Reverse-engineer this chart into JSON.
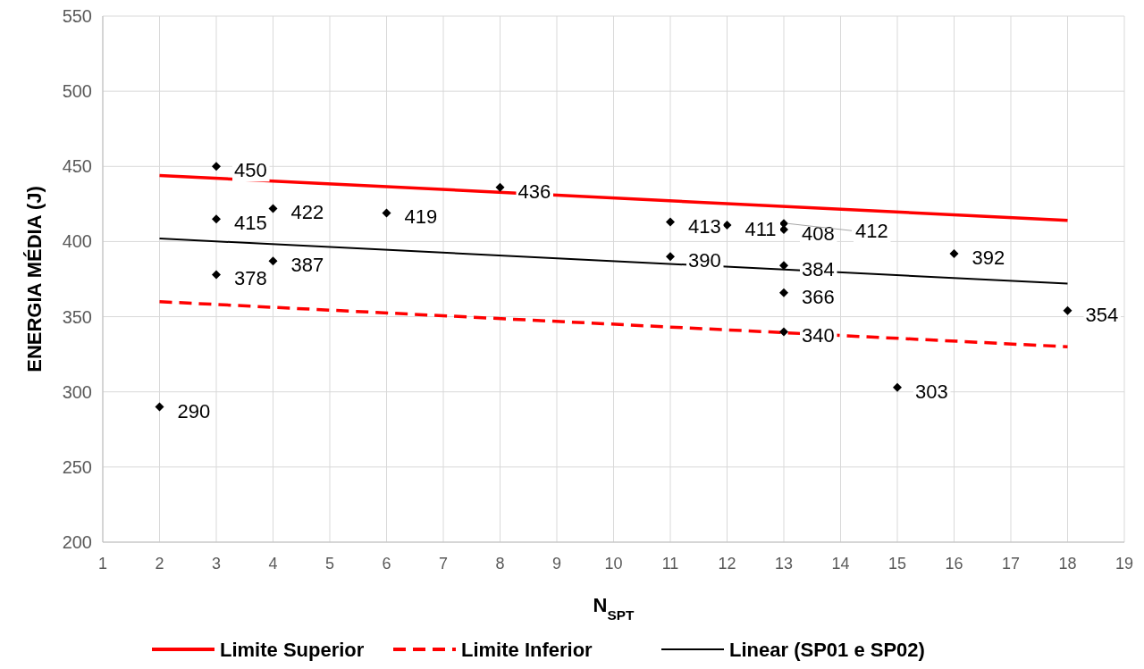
{
  "chart_data": {
    "type": "scatter",
    "xlabel": "N$_{SPT}$",
    "ylabel": "ENERGIA MÉDIA  (J)",
    "xlim": [
      1,
      19
    ],
    "xticks": [
      1,
      2,
      3,
      4,
      5,
      6,
      7,
      8,
      9,
      10,
      11,
      12,
      13,
      14,
      15,
      16,
      17,
      18,
      19
    ],
    "ylim": [
      200,
      550
    ],
    "yticks": [
      200,
      250,
      300,
      350,
      400,
      450,
      500,
      550
    ],
    "grid": true,
    "legend": "bottom",
    "series": [
      {
        "color": "#000000",
        "marker": "diamond",
        "x": [
          2,
          3,
          3,
          3,
          4,
          4,
          6,
          8,
          11,
          11,
          12,
          13,
          13,
          13,
          13,
          13,
          15,
          16,
          18
        ],
        "values": [
          290,
          450,
          415,
          378,
          422,
          387,
          419,
          436,
          413,
          390,
          411,
          412,
          408,
          384,
          366,
          340,
          303,
          392,
          354
        ],
        "value_labels": [
          "290",
          "450",
          "415",
          "378",
          "422",
          "387",
          "419",
          "436",
          "413",
          "390",
          "411",
          "412",
          "408",
          "384",
          "366",
          "340",
          "303",
          "392",
          "354"
        ]
      },
      {
        "type": "line",
        "name": "Limite Superior",
        "color": "#ff0000",
        "line_style": "solid",
        "marker": "none",
        "x": [
          2,
          18
        ],
        "values": [
          444,
          414
        ]
      },
      {
        "type": "line",
        "name": "Limite Inferior",
        "color": "#ff0000",
        "line_style": "dashed",
        "marker": "none",
        "x": [
          2,
          18
        ],
        "values": [
          360,
          330
        ]
      },
      {
        "type": "line",
        "name": "Linear (SP01 e SP02)",
        "color": "#000000",
        "line_style": "solid",
        "marker": "none",
        "x": [
          2,
          18
        ],
        "values": [
          402,
          372
        ]
      }
    ]
  }
}
